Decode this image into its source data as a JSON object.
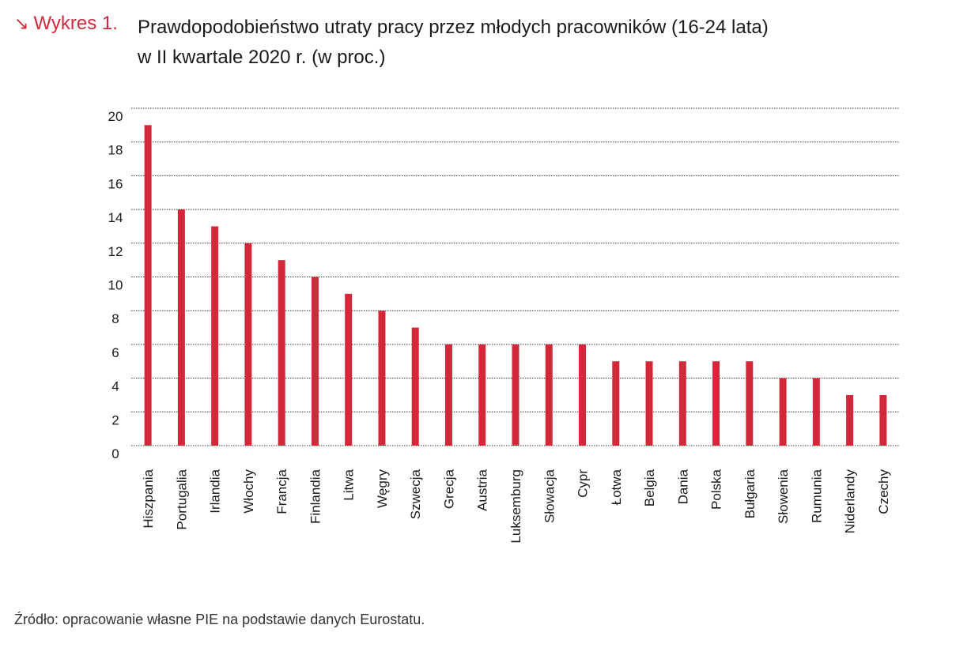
{
  "header": {
    "label": "Wykres 1.",
    "title_line1": "Prawdopodobieństwo utraty pracy przez młodych pracowników (16-24 lata)",
    "title_line2": "w II kwartale 2020 r. (w proc.)"
  },
  "source": "Źródło: opracowanie własne PIE na podstawie danych Eurostatu.",
  "colors": {
    "bar": "#d3283a",
    "grid": "#333333",
    "text": "#1a1a1a"
  },
  "chart_data": {
    "type": "bar",
    "categories": [
      "Hiszpania",
      "Portugalia",
      "Irlandia",
      "Włochy",
      "Francja",
      "Finlandia",
      "Litwa",
      "Węgry",
      "Szwecja",
      "Grecja",
      "Austria",
      "Luksemburg",
      "Słowacja",
      "Cypr",
      "Łotwa",
      "Belgia",
      "Dania",
      "Polska",
      "Bułgaria",
      "Słowenia",
      "Rumunia",
      "Niderlandy",
      "Czechy"
    ],
    "values": [
      19,
      14,
      13,
      12,
      11,
      10,
      9,
      8,
      7,
      6,
      6,
      6,
      6,
      6,
      5,
      5,
      5,
      5,
      5,
      4,
      4,
      3,
      3
    ],
    "yticks": [
      0,
      2,
      4,
      6,
      8,
      10,
      12,
      14,
      16,
      18,
      20
    ],
    "ylim": [
      0,
      20
    ],
    "grid": true,
    "title": "Prawdopodobieństwo utraty pracy przez młodych pracowników (16-24 lata) w II kwartale 2020 r. (w proc.)",
    "xlabel": "",
    "ylabel": ""
  }
}
